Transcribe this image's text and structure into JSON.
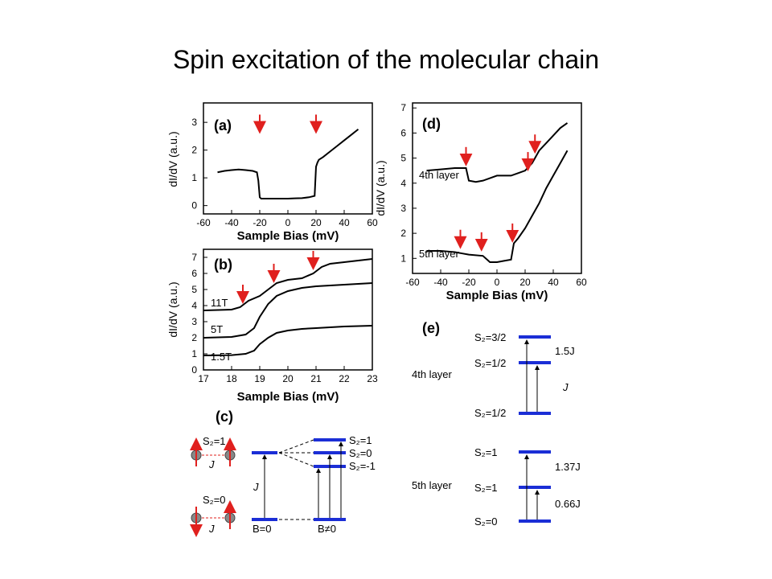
{
  "title": "Spin excitation of the molecular chain",
  "colors": {
    "arrow": "#e0201e",
    "level": "#1b2ed6",
    "curve": "#000000"
  },
  "panels": {
    "a": {
      "label": "(a)",
      "xlabel": "Sample Bias (mV)",
      "ylabel": "dI/dV (a.u.)",
      "xticks": [
        "-60",
        "-40",
        "-20",
        "0",
        "20",
        "40",
        "60"
      ],
      "yticks": [
        "0",
        "1",
        "2",
        "3"
      ],
      "xlim": [
        -60,
        60
      ],
      "ylim": [
        -0.3,
        3.7
      ],
      "series": [
        {
          "x": [
            -50,
            -45,
            -40,
            -35,
            -30,
            -25,
            -22,
            -21,
            -20,
            -19,
            -15,
            -10,
            -5,
            0,
            5,
            10,
            15,
            19,
            20,
            21,
            22,
            25,
            30,
            35,
            40,
            45,
            50
          ],
          "y": [
            1.2,
            1.25,
            1.28,
            1.3,
            1.28,
            1.25,
            1.2,
            0.9,
            0.3,
            0.25,
            0.25,
            0.25,
            0.25,
            0.25,
            0.26,
            0.27,
            0.3,
            0.35,
            1.4,
            1.55,
            1.65,
            1.75,
            1.95,
            2.15,
            2.35,
            2.55,
            2.75
          ]
        }
      ],
      "arrows_x": [
        -20,
        20
      ]
    },
    "b": {
      "label": "(b)",
      "xlabel": "Sample Bias (mV)",
      "ylabel": "dI/dV (a.u.)",
      "xticks": [
        "17",
        "18",
        "19",
        "20",
        "21",
        "22",
        "23"
      ],
      "yticks": [
        "0",
        "1",
        "2",
        "3",
        "4",
        "5",
        "6",
        "7"
      ],
      "xlim": [
        17,
        23
      ],
      "ylim": [
        0,
        7.5
      ],
      "series": [
        {
          "name": "1.5T",
          "x": [
            17,
            18,
            18.5,
            18.8,
            19,
            19.3,
            19.6,
            20,
            20.5,
            21,
            22,
            23
          ],
          "y": [
            0.9,
            0.92,
            1.0,
            1.2,
            1.6,
            2.0,
            2.3,
            2.45,
            2.55,
            2.6,
            2.7,
            2.75
          ]
        },
        {
          "name": "5T",
          "x": [
            17,
            18,
            18.5,
            18.8,
            19,
            19.3,
            19.6,
            20,
            20.5,
            21,
            22,
            23
          ],
          "y": [
            2.0,
            2.05,
            2.2,
            2.6,
            3.3,
            4.1,
            4.6,
            4.9,
            5.1,
            5.2,
            5.3,
            5.4
          ]
        },
        {
          "name": "11T",
          "x": [
            17,
            18,
            18.3,
            18.6,
            19,
            19.3,
            19.6,
            20,
            20.5,
            20.9,
            21.2,
            21.5,
            22,
            23
          ],
          "y": [
            3.7,
            3.75,
            3.9,
            4.3,
            4.6,
            5.0,
            5.4,
            5.6,
            5.7,
            6.0,
            6.4,
            6.6,
            6.7,
            6.9
          ]
        }
      ],
      "series_labels": [
        "11T",
        "5T",
        "1.5T"
      ],
      "arrows": [
        {
          "x": 18.4,
          "y": 4.3
        },
        {
          "x": 19.5,
          "y": 5.6
        },
        {
          "x": 20.9,
          "y": 6.4
        }
      ]
    },
    "d": {
      "label": "(d)",
      "xlabel": "Sample Bias (mV)",
      "ylabel": "dI/dV (a.u.)",
      "xticks": [
        "-60",
        "-40",
        "-20",
        "0",
        "20",
        "40",
        "60"
      ],
      "yticks": [
        "1",
        "2",
        "3",
        "4",
        "5",
        "6",
        "7"
      ],
      "xlim": [
        -60,
        60
      ],
      "ylim": [
        0.4,
        7.2
      ],
      "series": [
        {
          "name": "4th layer",
          "x": [
            -50,
            -40,
            -30,
            -22,
            -20,
            -15,
            -10,
            -5,
            0,
            10,
            15,
            20,
            25,
            27,
            30,
            35,
            40,
            45,
            50
          ],
          "y": [
            4.5,
            4.55,
            4.6,
            4.6,
            4.1,
            4.05,
            4.1,
            4.2,
            4.3,
            4.3,
            4.4,
            4.5,
            4.8,
            5.0,
            5.3,
            5.6,
            5.9,
            6.2,
            6.4
          ]
        },
        {
          "name": "5th layer",
          "x": [
            -50,
            -40,
            -30,
            -25,
            -20,
            -10,
            -5,
            0,
            5,
            10,
            12,
            15,
            20,
            25,
            30,
            35,
            40,
            45,
            50
          ],
          "y": [
            1.3,
            1.3,
            1.25,
            1.2,
            1.15,
            1.1,
            0.85,
            0.85,
            0.9,
            0.95,
            1.6,
            1.8,
            2.2,
            2.7,
            3.2,
            3.8,
            4.3,
            4.8,
            5.3
          ]
        }
      ],
      "series_labels": [
        "4th layer",
        "5th layer"
      ],
      "arrows": [
        {
          "x": -22,
          "y": 4.8
        },
        {
          "x": 22,
          "y": 4.6
        },
        {
          "x": 27,
          "y": 5.3
        },
        {
          "x": -26,
          "y": 1.5
        },
        {
          "x": -11,
          "y": 1.4
        },
        {
          "x": 11,
          "y": 1.75
        }
      ]
    }
  },
  "panel_c": {
    "label": "(c)",
    "top_state": {
      "spin_label": "S₂=1",
      "coupling": "J"
    },
    "bottom_state": {
      "spin_label": "S₂=0",
      "coupling": "J"
    },
    "left_gap_label": "J",
    "b0_label": "B=0",
    "bnz_label": "B≠0",
    "sz_labels": [
      "S₂=1",
      "S₂=0",
      "S₂=-1"
    ]
  },
  "panel_e": {
    "label": "(e)",
    "layer4": {
      "name": "4th layer",
      "levels": [
        "S₂=3/2",
        "S₂=1/2",
        "S₂=1/2"
      ],
      "gaps": [
        "1.5J",
        "J"
      ]
    },
    "layer5": {
      "name": "5th layer",
      "levels": [
        "S₂=1",
        "S₂=1",
        "S₂=0"
      ],
      "gaps": [
        "1.37J",
        "0.66J"
      ]
    }
  }
}
